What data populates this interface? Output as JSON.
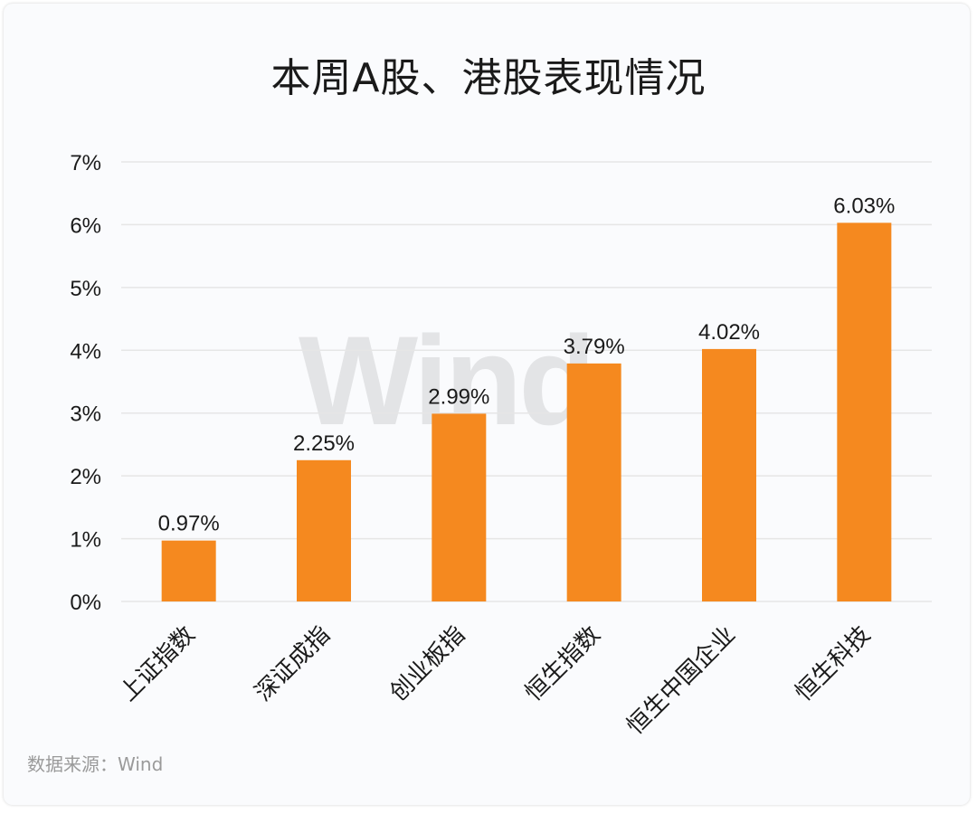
{
  "chart_data": {
    "type": "bar",
    "title": "本周A股、港股表现情况",
    "categories": [
      "上证指数",
      "深证成指",
      "创业板指",
      "恒生指数",
      "恒生中国企业",
      "恒生科技"
    ],
    "values": [
      0.97,
      2.25,
      2.99,
      3.79,
      4.02,
      6.03
    ],
    "value_labels": [
      "0.97%",
      "2.25%",
      "2.99%",
      "3.79%",
      "4.02%",
      "6.03%"
    ],
    "ylim": [
      0,
      7
    ],
    "yticks": [
      0,
      1,
      2,
      3,
      4,
      5,
      6,
      7
    ],
    "ytick_labels": [
      "0%",
      "1%",
      "2%",
      "3%",
      "4%",
      "5%",
      "6%",
      "7%"
    ],
    "grid": true,
    "bar_color": "#f5891f",
    "grid_color": "#e6e6e6"
  },
  "watermark": "Wind",
  "source": "数据来源：Wind"
}
